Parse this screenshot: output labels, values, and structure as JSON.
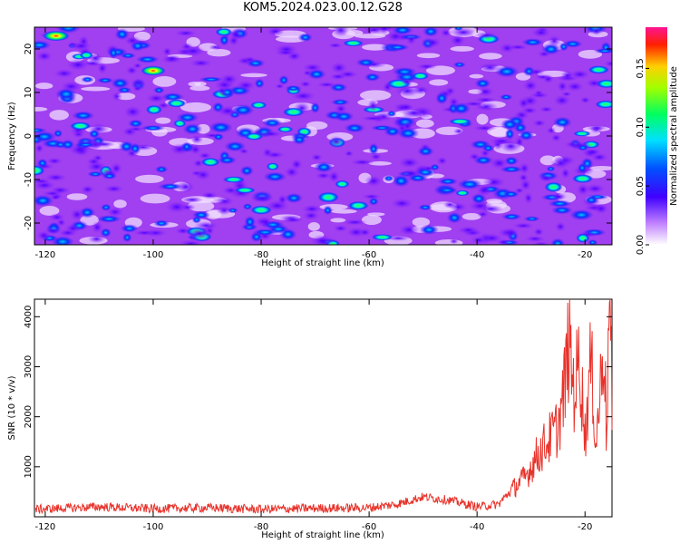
{
  "title": "KOM5.2024.023.00.12.G28",
  "chart_data": [
    {
      "type": "heatmap",
      "xlabel": "Height of straight line (km)",
      "ylabel": "Frequency (Hz)",
      "xlim": [
        -122,
        -15
      ],
      "ylim": [
        -25,
        25
      ],
      "xticks": [
        "-120",
        "-100",
        "-80",
        "-60",
        "-40",
        "-20"
      ],
      "yticks": [
        "-20",
        "-10",
        "0",
        "10",
        "20"
      ],
      "colorbar": {
        "label": "Normalized spectral amplitude",
        "range": [
          0,
          0.185
        ],
        "ticks": [
          "0.00",
          "0.05",
          "0.10",
          "0.15"
        ],
        "colors": [
          "#ffffff",
          "#8a2be2",
          "#0000ff",
          "#00e5ff",
          "#00ff80",
          "#ffff00",
          "#ff0000",
          "#ff1493"
        ]
      },
      "hotspots": [
        {
          "x": -118,
          "y": 23,
          "value": 0.18
        },
        {
          "x": -100,
          "y": 15,
          "value": 0.15
        },
        {
          "x": -74,
          "y": 5.5,
          "value": 0.1
        },
        {
          "x": -80,
          "y": -17,
          "value": 0.1
        },
        {
          "x": -62,
          "y": -16,
          "value": 0.09
        },
        {
          "x": -16,
          "y": 12,
          "value": 0.09
        }
      ]
    },
    {
      "type": "line",
      "xlabel": "Height of straight line (km)",
      "ylabel": "SNR (10 * v/v)",
      "xlim": [
        -122,
        -15
      ],
      "ylim": [
        0,
        4350
      ],
      "xticks": [
        "-120",
        "-100",
        "-80",
        "-60",
        "-40",
        "-20"
      ],
      "yticks": [
        "1000",
        "2000",
        "3000",
        "4000"
      ],
      "series": [
        {
          "color": "#e8322a",
          "x": [
            -122,
            -110,
            -100,
            -90,
            -80,
            -70,
            -60,
            -55,
            -50,
            -45,
            -40,
            -36,
            -34,
            -31,
            -29,
            -27,
            -25,
            -24,
            -23,
            -22,
            -21,
            -20,
            -19,
            -18.5,
            -18,
            -17,
            -16.5,
            -16,
            -15.5,
            -15.2,
            -15
          ],
          "values": [
            150,
            200,
            160,
            180,
            150,
            170,
            180,
            250,
            400,
            330,
            200,
            250,
            500,
            800,
            1200,
            1500,
            1800,
            2400,
            3500,
            2500,
            3200,
            1600,
            3000,
            2600,
            1400,
            2800,
            3800,
            1500,
            4300,
            3900,
            1400
          ]
        }
      ]
    }
  ]
}
